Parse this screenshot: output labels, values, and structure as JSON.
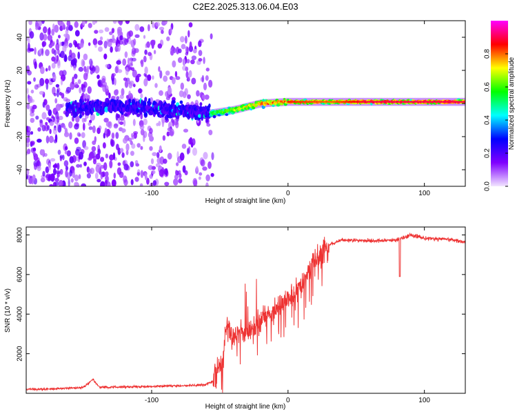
{
  "title": "C2E2.2025.313.06.04.E03",
  "chart_data": [
    {
      "type": "heatmap",
      "xlabel": "Height of straight line (km)",
      "ylabel": "Frequency (Hz)",
      "xlim": [
        -192,
        130
      ],
      "ylim": [
        -50,
        50
      ],
      "x_ticks": [
        -100,
        0,
        100
      ],
      "y_ticks": [
        -40,
        -20,
        0,
        20,
        40
      ],
      "colorbar": {
        "label": "Normalized spectral amplitude",
        "range": [
          0,
          1
        ],
        "ticks": [
          0.0,
          0.2,
          0.4,
          0.6,
          0.8
        ],
        "colors": [
          "#f2e6ff",
          "#8000ff",
          "#0000ff",
          "#00ffff",
          "#00ff00",
          "#ffff00",
          "#ff0000",
          "#ff00ff"
        ]
      },
      "ridge": [
        {
          "x": -155,
          "y": -3,
          "v": 0.25
        },
        {
          "x": -120,
          "y": -2,
          "v": 0.35
        },
        {
          "x": -80,
          "y": -4,
          "v": 0.4
        },
        {
          "x": -57,
          "y": -6,
          "v": 0.55
        },
        {
          "x": -40,
          "y": -4,
          "v": 0.7
        },
        {
          "x": -20,
          "y": 0,
          "v": 0.8
        },
        {
          "x": 0,
          "y": 1,
          "v": 0.85
        },
        {
          "x": 30,
          "y": 1,
          "v": 0.8
        },
        {
          "x": 60,
          "y": 1,
          "v": 0.9
        },
        {
          "x": 100,
          "y": 1,
          "v": 0.9
        },
        {
          "x": 130,
          "y": 1,
          "v": 0.9
        }
      ]
    },
    {
      "type": "line",
      "xlabel": "Height of straight line (km)",
      "ylabel": "SNR (10 * v/v)",
      "xlim": [
        -192,
        130
      ],
      "ylim": [
        0,
        8400
      ],
      "x_ticks": [
        -100,
        0,
        100
      ],
      "y_ticks": [
        2000,
        4000,
        6000,
        8000
      ],
      "series": [
        {
          "name": "SNR",
          "color": "#ee3333",
          "x": [
            -192,
            -170,
            -150,
            -143,
            -138,
            -120,
            -100,
            -80,
            -62,
            -55,
            -48,
            -45,
            -40,
            -35,
            -30,
            -25,
            -20,
            -10,
            0,
            10,
            20,
            30,
            40,
            60,
            80,
            90,
            100,
            110,
            120,
            130
          ],
          "y": [
            200,
            230,
            300,
            700,
            300,
            320,
            350,
            380,
            420,
            600,
            1500,
            3500,
            2800,
            3200,
            3000,
            3400,
            3700,
            4200,
            4700,
            5500,
            6700,
            7500,
            7750,
            7700,
            7750,
            8000,
            7850,
            7800,
            7750,
            7650
          ]
        }
      ]
    }
  ]
}
